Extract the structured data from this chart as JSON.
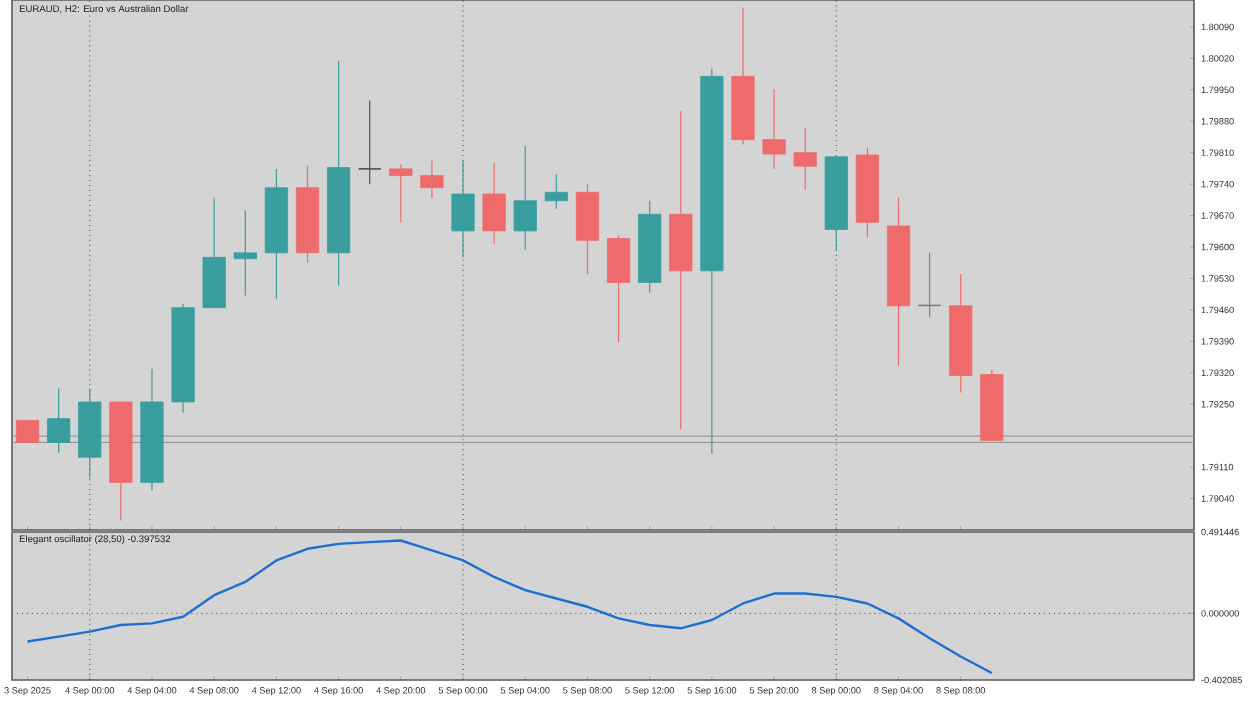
{
  "chart_data": [
    {
      "type": "candlestick",
      "title": "EURAUD, H2:  Euro vs Australian Dollar",
      "categories": [
        "3 Sep 2025",
        null,
        "4 Sep 00:00",
        null,
        "4 Sep 04:00",
        null,
        "4 Sep 08:00",
        null,
        "4 Sep 12:00",
        null,
        "4 Sep 16:00",
        null,
        "4 Sep 20:00",
        null,
        "5 Sep 00:00",
        null,
        "5 Sep 04:00",
        null,
        "5 Sep 08:00",
        null,
        "5 Sep 12:00",
        null,
        "5 Sep 16:00",
        null,
        "5 Sep 20:00",
        null,
        "8 Sep 00:00",
        null,
        "8 Sep 04:00",
        null,
        "8 Sep 08:00",
        null,
        null,
        null,
        null,
        null,
        null,
        null
      ],
      "ohlc": [
        [
          1.79214,
          1.79214,
          1.79165,
          1.79165
        ],
        [
          1.79165,
          1.79285,
          1.79142,
          1.79218
        ],
        [
          1.79132,
          1.79285,
          1.79085,
          1.79255
        ],
        [
          1.79255,
          1.79255,
          1.78991,
          1.79076
        ],
        [
          1.79076,
          1.79329,
          1.79058,
          1.79255
        ],
        [
          1.79255,
          1.79473,
          1.79231,
          1.79465
        ],
        [
          1.79465,
          1.7971,
          1.79465,
          1.79577
        ],
        [
          1.79574,
          1.79682,
          1.79492,
          1.79587
        ],
        [
          1.79587,
          1.79774,
          1.79485,
          1.79732
        ],
        [
          1.79732,
          1.79781,
          1.79565,
          1.79587
        ],
        [
          1.79587,
          1.80015,
          1.79514,
          1.79777
        ],
        [
          1.79774,
          1.79926,
          1.7974,
          1.79774
        ],
        [
          1.79774,
          1.79784,
          1.79655,
          1.79759
        ],
        [
          1.79759,
          1.79792,
          1.7971,
          1.79732
        ],
        [
          1.79636,
          1.79792,
          1.79577,
          1.79718
        ],
        [
          1.79718,
          1.79788,
          1.79608,
          1.79636
        ],
        [
          1.79636,
          1.79825,
          1.79594,
          1.79703
        ],
        [
          1.79703,
          1.79762,
          1.79685,
          1.79722
        ],
        [
          1.79722,
          1.7974,
          1.7954,
          1.79615
        ],
        [
          1.79619,
          1.79626,
          1.79388,
          1.79521
        ],
        [
          1.79521,
          1.79703,
          1.79498,
          1.79673
        ],
        [
          1.79673,
          1.79903,
          1.79194,
          1.79547
        ],
        [
          1.79547,
          1.79997,
          1.79139,
          1.7998
        ],
        [
          1.7998,
          1.80133,
          1.79828,
          1.79839
        ],
        [
          1.79839,
          1.79952,
          1.79774,
          1.79807
        ],
        [
          1.7981,
          1.79866,
          1.79728,
          1.7978
        ],
        [
          1.79639,
          1.79801,
          1.79592,
          1.79801
        ],
        [
          1.79805,
          1.79821,
          1.79621,
          1.79655
        ],
        [
          1.79647,
          1.7971,
          1.79336,
          1.79469
        ],
        [
          1.7947,
          1.79587,
          1.79443,
          1.7947
        ],
        [
          1.79469,
          1.7954,
          1.79276,
          1.79314
        ],
        [
          1.79316,
          1.79326,
          1.79169,
          1.79169
        ],
        null,
        null,
        null,
        null,
        null,
        null
      ],
      "colors": [
        "#ef6b6b",
        "#3a9e9e",
        "#3a9e9e",
        "#ef6b6b",
        "#3a9e9e",
        "#3a9e9e",
        "#3a9e9e",
        "#3a9e9e",
        "#3a9e9e",
        "#ef6b6b",
        "#3a9e9e",
        "#505050",
        "#ef6b6b",
        "#ef6b6b",
        "#3a9e9e",
        "#ef6b6b",
        "#3a9e9e",
        "#3a9e9e",
        "#ef6b6b",
        "#ef6b6b",
        "#3a9e9e",
        "#ef6b6b",
        "#3a9e9e",
        "#ef6b6b",
        "#ef6b6b",
        "#ef6b6b",
        "#3a9e9e",
        "#ef6b6b",
        "#ef6b6b",
        "#808080",
        "#ef6b6b",
        "#ef6b6b",
        null,
        null,
        null,
        null,
        null,
        null
      ],
      "ylim": [
        1.7897,
        1.8015
      ],
      "yticks": [
        {
          "value": 1.7904,
          "label": "1.79040"
        },
        {
          "value": 1.7911,
          "label": "1.79110"
        },
        {
          "value": 1.7925,
          "label": "1.79250"
        },
        {
          "value": 1.7932,
          "label": "1.79320"
        },
        {
          "value": 1.7939,
          "label": "1.79390"
        },
        {
          "value": 1.7946,
          "label": "1.79460"
        },
        {
          "value": 1.7953,
          "label": "1.79530"
        },
        {
          "value": 1.796,
          "label": "1.79600"
        },
        {
          "value": 1.7967,
          "label": "1.79670"
        },
        {
          "value": 1.7974,
          "label": "1.79740"
        },
        {
          "value": 1.7981,
          "label": "1.79810"
        },
        {
          "value": 1.7988,
          "label": "1.79880"
        },
        {
          "value": 1.7995,
          "label": "1.79950"
        },
        {
          "value": 1.8002,
          "label": "1.80020"
        },
        {
          "value": 1.8009,
          "label": "1.80090"
        }
      ],
      "ref_lines": [
        {
          "axis": "x",
          "value": "4 Sep 00:00",
          "color": "#404040",
          "line_style": "dotted"
        },
        {
          "axis": "x",
          "value": "5 Sep 00:00",
          "color": "#404040",
          "line_style": "dotted"
        },
        {
          "axis": "x",
          "value": "8 Sep 00:00",
          "color": "#404040",
          "line_style": "dotted"
        },
        {
          "axis": "y",
          "value": 1.79179,
          "color": "#909090",
          "line_style": "solid"
        },
        {
          "axis": "y",
          "value": 1.79165,
          "color": "#909090",
          "line_style": "solid"
        }
      ],
      "tick_labels": "y"
    },
    {
      "type": "line",
      "title": "Elegant oscillator (28,50) -0.397532",
      "categories": [
        "3 Sep 2025",
        null,
        "4 Sep 00:00",
        null,
        "4 Sep 04:00",
        null,
        "4 Sep 08:00",
        null,
        "4 Sep 12:00",
        null,
        "4 Sep 16:00",
        null,
        "4 Sep 20:00",
        null,
        "5 Sep 00:00",
        null,
        "5 Sep 04:00",
        null,
        "5 Sep 08:00",
        null,
        "5 Sep 12:00",
        null,
        "5 Sep 16:00",
        null,
        "5 Sep 20:00",
        null,
        "8 Sep 00:00",
        null,
        "8 Sep 04:00",
        null,
        "8 Sep 08:00",
        null,
        null,
        null,
        null,
        null,
        null,
        null
      ],
      "series": [
        {
          "color": "#1f6fd0",
          "values": [
            -0.17,
            -0.14,
            -0.11,
            -0.07,
            -0.06,
            -0.02,
            0.11,
            0.19,
            0.32,
            0.39,
            0.42,
            0.43,
            0.44,
            0.38,
            0.32,
            0.22,
            0.14,
            0.09,
            0.04,
            -0.03,
            -0.07,
            -0.09,
            -0.04,
            0.06,
            0.12,
            0.12,
            0.1,
            0.06,
            -0.03,
            -0.15,
            -0.26,
            -0.36,
            null,
            null,
            null,
            null,
            null,
            null
          ]
        }
      ],
      "ylim": [
        -0.402085,
        0.491446
      ],
      "yticks": [
        -0.402085,
        {
          "value": 0,
          "label": "0.000000"
        },
        0.491446
      ],
      "ref_lines": [
        {
          "axis": "x",
          "value": "4 Sep 00:00",
          "color": "#404040",
          "line_style": "dotted"
        },
        {
          "axis": "x",
          "value": "5 Sep 00:00",
          "color": "#404040",
          "line_style": "dotted"
        },
        {
          "axis": "x",
          "value": "8 Sep 00:00",
          "color": "#404040",
          "line_style": "dotted"
        },
        {
          "axis": "y",
          "value": 0,
          "color": "#404040",
          "line_style": "dotted"
        }
      ],
      "marker": "none",
      "line_style": "solid"
    }
  ]
}
